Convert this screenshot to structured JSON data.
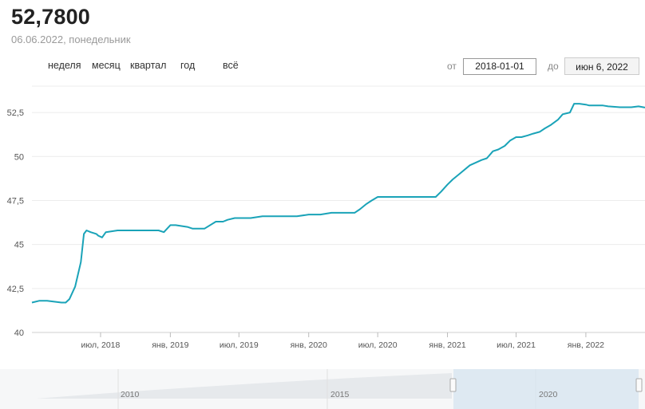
{
  "header": {
    "value": "52,7800",
    "date": "06.06.2022, понедельник"
  },
  "range_buttons": [
    "неделя",
    "месяц",
    "квартал",
    "год",
    "всё"
  ],
  "date_range": {
    "from_label": "от",
    "from_value": "2018-01-01",
    "to_label": "до",
    "to_value": "июн 6, 2022"
  },
  "navigator": {
    "labels": [
      "2010",
      "2015",
      "2020"
    ]
  },
  "chart_data": {
    "type": "line",
    "title": "",
    "xlabel": "",
    "ylabel": "",
    "ylim": [
      40,
      54
    ],
    "yticks": [
      40,
      42.5,
      45,
      47.5,
      50,
      52.5
    ],
    "ytick_labels": [
      "40",
      "42,5",
      "45",
      "47,5",
      "50",
      "52,5"
    ],
    "xlim": [
      "2018-01-01",
      "2022-06-06"
    ],
    "xticks": [
      "2018-07-01",
      "2019-01-01",
      "2019-07-01",
      "2020-01-01",
      "2020-07-01",
      "2021-01-01",
      "2021-07-01",
      "2022-01-01"
    ],
    "xtick_labels": [
      "июл, 2018",
      "янв, 2019",
      "июл, 2019",
      "янв, 2020",
      "июл, 2020",
      "янв, 2021",
      "июл, 2021",
      "янв, 2022"
    ],
    "grid": true,
    "color": "#1aa3b8",
    "series": [
      {
        "x": [
          "2018-01-01",
          "2018-01-20",
          "2018-02-10",
          "2018-03-01",
          "2018-03-20",
          "2018-03-31",
          "2018-04-10",
          "2018-04-25",
          "2018-05-10",
          "2018-05-18",
          "2018-05-25",
          "2018-06-05",
          "2018-06-20",
          "2018-06-25",
          "2018-07-05",
          "2018-07-15",
          "2018-08-15",
          "2018-09-15",
          "2018-10-15",
          "2018-11-15",
          "2018-12-01",
          "2018-12-15",
          "2019-01-01",
          "2019-01-15",
          "2019-02-15",
          "2019-03-01",
          "2019-04-01",
          "2019-05-01",
          "2019-05-20",
          "2019-06-01",
          "2019-06-20",
          "2019-07-01",
          "2019-08-01",
          "2019-09-01",
          "2019-10-01",
          "2019-11-01",
          "2019-12-01",
          "2020-01-01",
          "2020-02-01",
          "2020-03-01",
          "2020-04-01",
          "2020-05-01",
          "2020-05-15",
          "2020-06-01",
          "2020-06-15",
          "2020-07-01",
          "2020-08-01",
          "2020-09-01",
          "2020-10-01",
          "2020-11-01",
          "2020-12-01",
          "2020-12-15",
          "2021-01-01",
          "2021-01-15",
          "2021-02-01",
          "2021-03-01",
          "2021-04-01",
          "2021-04-15",
          "2021-05-01",
          "2021-05-15",
          "2021-06-01",
          "2021-06-15",
          "2021-07-01",
          "2021-07-15",
          "2021-08-01",
          "2021-08-15",
          "2021-09-01",
          "2021-09-15",
          "2021-10-01",
          "2021-10-20",
          "2021-11-01",
          "2021-11-20",
          "2021-12-01",
          "2021-12-15",
          "2022-01-01",
          "2022-01-10",
          "2022-01-20",
          "2022-02-01",
          "2022-02-15",
          "2022-03-01",
          "2022-04-01",
          "2022-05-01",
          "2022-05-20",
          "2022-06-06"
        ],
        "y": [
          41.7,
          41.8,
          41.8,
          41.75,
          41.7,
          41.7,
          41.9,
          42.6,
          44.0,
          45.6,
          45.8,
          45.7,
          45.6,
          45.5,
          45.4,
          45.7,
          45.8,
          45.8,
          45.8,
          45.8,
          45.8,
          45.7,
          46.1,
          46.1,
          46.0,
          45.9,
          45.9,
          46.3,
          46.3,
          46.4,
          46.5,
          46.5,
          46.5,
          46.6,
          46.6,
          46.6,
          46.6,
          46.7,
          46.7,
          46.8,
          46.8,
          46.8,
          47.0,
          47.3,
          47.5,
          47.7,
          47.7,
          47.7,
          47.7,
          47.7,
          47.7,
          48.0,
          48.4,
          48.7,
          49.0,
          49.5,
          49.8,
          49.9,
          50.3,
          50.4,
          50.6,
          50.9,
          51.1,
          51.1,
          51.2,
          51.3,
          51.4,
          51.6,
          51.8,
          52.1,
          52.4,
          52.5,
          53.0,
          53.0,
          52.95,
          52.9,
          52.9,
          52.9,
          52.9,
          52.85,
          52.8,
          52.8,
          52.85,
          52.78
        ]
      }
    ]
  }
}
